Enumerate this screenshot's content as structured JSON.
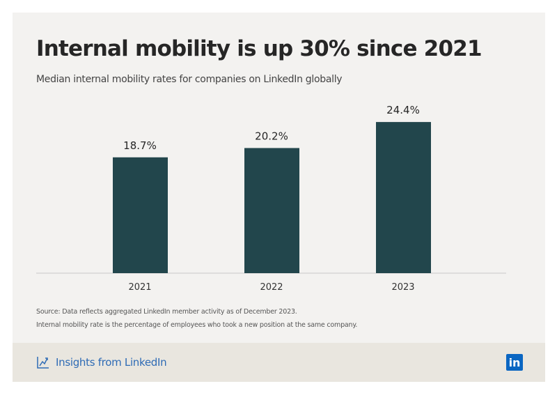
{
  "chart_data": {
    "type": "bar",
    "title": "Internal mobility is up 30% since 2021",
    "subtitle": "Median internal mobility rates for companies on LinkedIn globally",
    "categories": [
      "2021",
      "2022",
      "2023"
    ],
    "values": [
      18.7,
      20.2,
      24.4
    ],
    "data_labels": [
      "18.7%",
      "20.2%",
      "24.4%"
    ],
    "ylim": [
      0,
      27
    ],
    "grid": false,
    "bar_color": "#22464c"
  },
  "notes": [
    "Source: Data reflects aggregated LinkedIn member activity as of December 2023.",
    "Internal mobility rate is the percentage of employees who took a new position at the same company."
  ],
  "footer": {
    "brand": "Insights from LinkedIn",
    "brand_icon": "chart-line-icon",
    "logo": "in",
    "brand_color": "#0a66c2"
  }
}
